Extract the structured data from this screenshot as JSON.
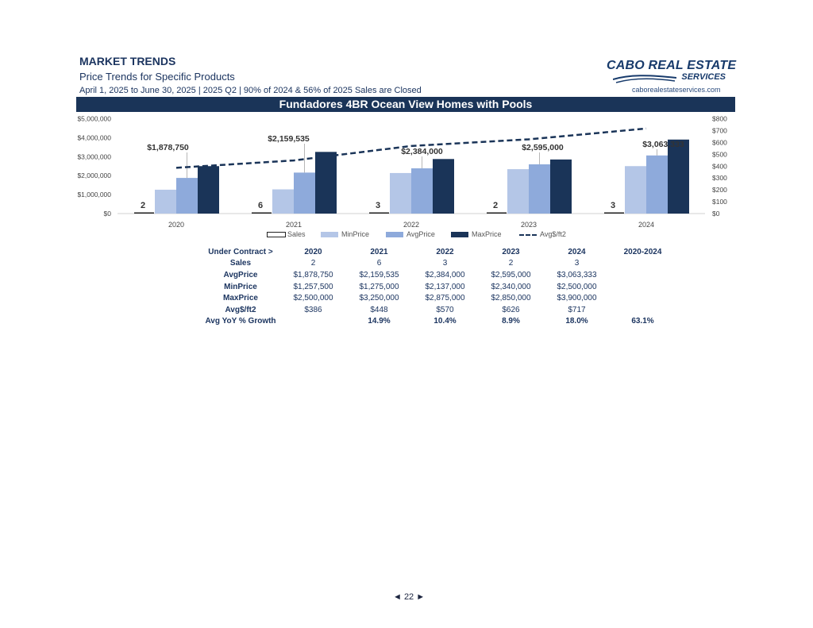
{
  "header": {
    "title": "MARKET TRENDS",
    "subtitle": "Price Trends for Specific Products",
    "period": "April 1, 2025 to June 30, 2025 | 2025 Q2 | 90% of 2024 & 56% of 2025 Sales are Closed",
    "logo_line1": "CABO REAL ESTATE",
    "logo_line2": "SERVICES",
    "website": "caborealestateservices.com"
  },
  "banner": {
    "title": "Fundadores 4BR Ocean View Homes with Pools"
  },
  "colors": {
    "sales": "#ffffff",
    "min": "#b4c6e7",
    "avg": "#8eaadb",
    "max": "#1a3458",
    "line": "#1a3458",
    "text": "#1c3560"
  },
  "chart_data": {
    "type": "bar",
    "categories": [
      "2020",
      "2021",
      "2022",
      "2023",
      "2024"
    ],
    "series": [
      {
        "name": "Sales",
        "values": [
          2,
          6,
          3,
          2,
          3
        ],
        "axis": "left"
      },
      {
        "name": "MinPrice",
        "values": [
          1257500,
          1275000,
          2137000,
          2340000,
          2500000
        ],
        "axis": "left"
      },
      {
        "name": "AvgPrice",
        "values": [
          1878750,
          2159535,
          2384000,
          2595000,
          3063333
        ],
        "axis": "left"
      },
      {
        "name": "MaxPrice",
        "values": [
          2500000,
          3250000,
          2875000,
          2850000,
          3900000
        ],
        "axis": "left"
      },
      {
        "name": "Avg$/ft2",
        "type": "line",
        "style": "dashed",
        "values": [
          386,
          448,
          570,
          626,
          717
        ],
        "axis": "right"
      }
    ],
    "ylim_left": [
      0,
      5000000
    ],
    "ylim_right": [
      0,
      800
    ],
    "left_ticks": [
      "$0",
      "$1,000,000",
      "$2,000,000",
      "$3,000,000",
      "$4,000,000",
      "$5,000,000"
    ],
    "left_tick_values": [
      0,
      1000000,
      2000000,
      3000000,
      4000000,
      5000000
    ],
    "right_ticks": [
      "$0",
      "$100",
      "$200",
      "$300",
      "$400",
      "$500",
      "$600",
      "$700",
      "$800"
    ],
    "right_tick_values": [
      0,
      100,
      200,
      300,
      400,
      500,
      600,
      700,
      800
    ],
    "sales_labels": [
      "2",
      "6",
      "3",
      "2",
      "3"
    ],
    "avg_labels": [
      "$1,878,750",
      "$2,159,535",
      "$2,384,000",
      "$2,595,000",
      "$3,063,333"
    ],
    "legend_placement": "bottom",
    "grid": false
  },
  "legend": {
    "items": [
      "Sales",
      "MinPrice",
      "AvgPrice",
      "MaxPrice",
      "Avg$/ft2"
    ]
  },
  "table": {
    "header": [
      "Under Contract >",
      "2020",
      "2021",
      "2022",
      "2023",
      "2024",
      "2020-2024"
    ],
    "rows": [
      {
        "label": "Sales",
        "cells": [
          "2",
          "6",
          "3",
          "2",
          "3",
          ""
        ]
      },
      {
        "label": "AvgPrice",
        "cells": [
          "$1,878,750",
          "$2,159,535",
          "$2,384,000",
          "$2,595,000",
          "$3,063,333",
          ""
        ]
      },
      {
        "label": "MinPrice",
        "cells": [
          "$1,257,500",
          "$1,275,000",
          "$2,137,000",
          "$2,340,000",
          "$2,500,000",
          ""
        ]
      },
      {
        "label": "MaxPrice",
        "cells": [
          "$2,500,000",
          "$3,250,000",
          "$2,875,000",
          "$2,850,000",
          "$3,900,000",
          ""
        ]
      },
      {
        "label": "Avg$/ft2",
        "cells": [
          "$386",
          "$448",
          "$570",
          "$626",
          "$717",
          ""
        ]
      },
      {
        "label": "Avg YoY % Growth",
        "cells": [
          "",
          "14.9%",
          "10.4%",
          "8.9%",
          "18.0%",
          "63.1%"
        ]
      }
    ]
  },
  "footer": {
    "page": "◄ 22 ►"
  }
}
